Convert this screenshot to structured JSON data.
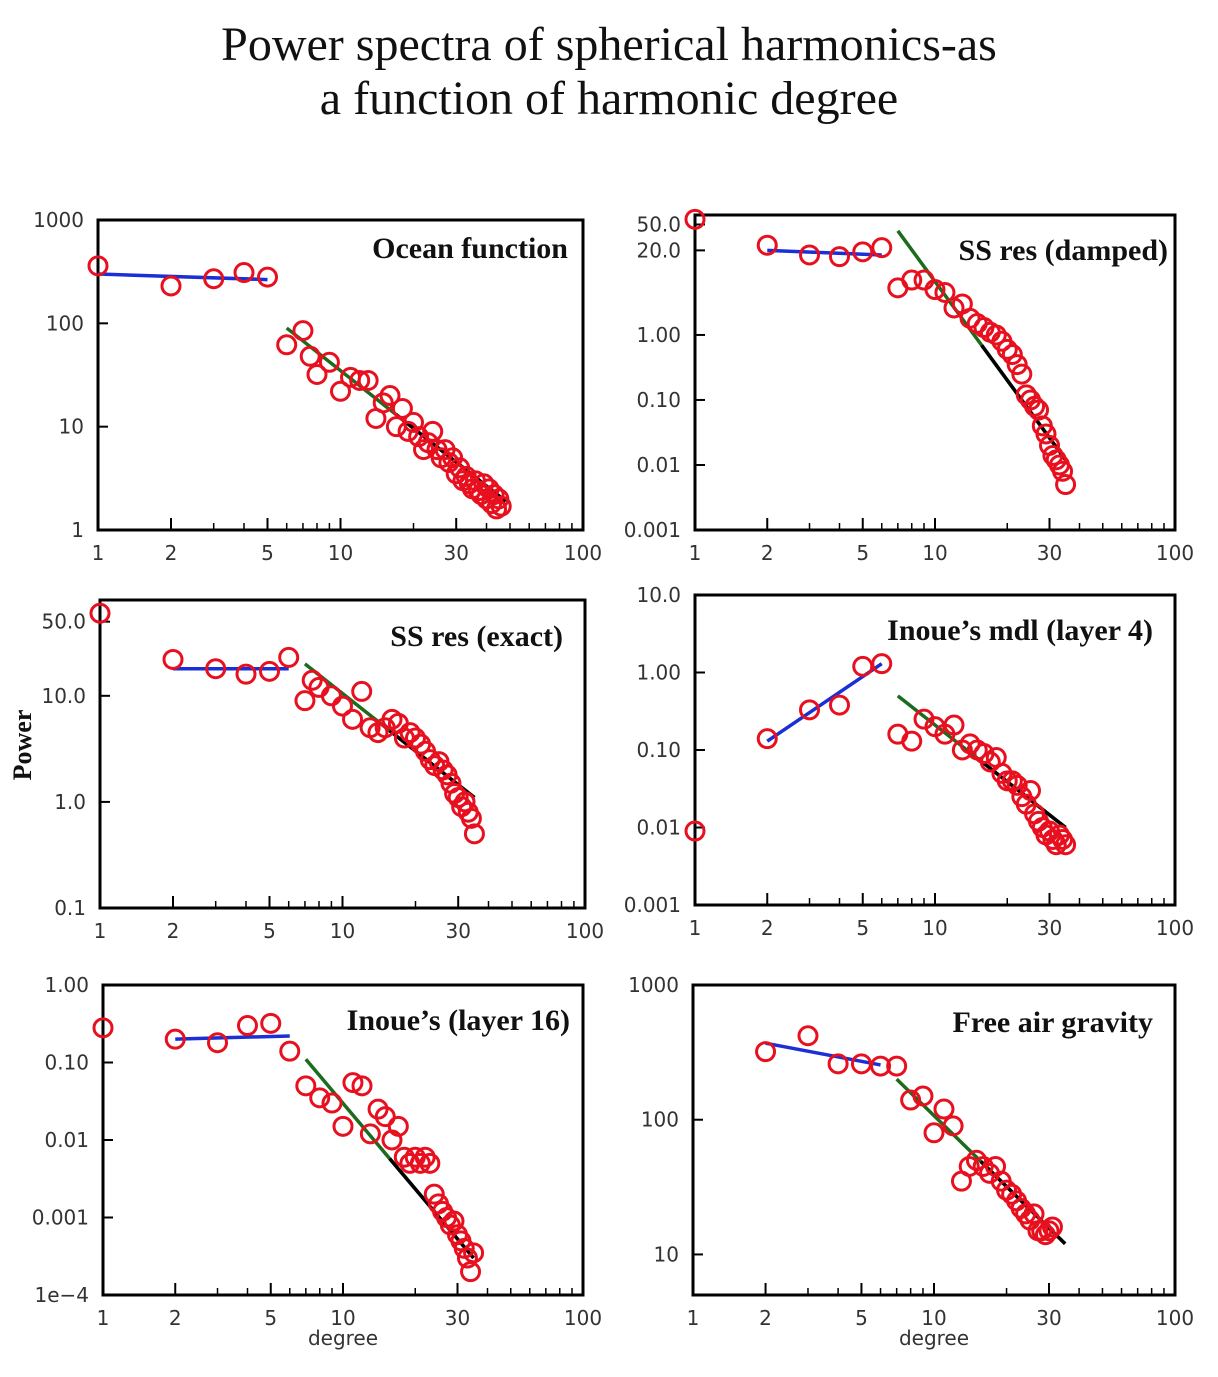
{
  "title_line1": "Power spectra of spherical harmonics-as",
  "title_line2": "a function of harmonic degree",
  "ylabel": "Power",
  "xlabel": "degree",
  "x_ticks": [
    1,
    2,
    5,
    10,
    30,
    100
  ],
  "x_tick_labels": [
    "1",
    "2",
    "5",
    "10",
    "30",
    "100"
  ],
  "colors": {
    "points": "#e8101e",
    "fit_low": "#1b2fd6",
    "fit_high_a": "#1c6b1f",
    "fit_high_b": "#000000",
    "frame": "#000000"
  },
  "chart_data": [
    {
      "type": "scatter",
      "title": "Ocean function",
      "xlabel": "",
      "scale": "log-log",
      "xlim": [
        1,
        100
      ],
      "ylim": [
        1,
        1000
      ],
      "y_ticks": [
        1,
        10,
        100,
        1000
      ],
      "y_tick_labels": [
        "1",
        "10",
        "100",
        "1000"
      ],
      "points": [
        [
          1,
          360
        ],
        [
          2,
          230
        ],
        [
          3,
          270
        ],
        [
          4,
          310
        ],
        [
          5,
          280
        ],
        [
          6,
          62
        ],
        [
          7,
          85
        ],
        [
          7.5,
          48
        ],
        [
          8,
          32
        ],
        [
          9,
          42
        ],
        [
          10,
          22
        ],
        [
          11,
          30
        ],
        [
          12,
          28
        ],
        [
          13,
          28
        ],
        [
          14,
          12
        ],
        [
          15,
          17
        ],
        [
          16,
          20
        ],
        [
          17,
          10
        ],
        [
          18,
          15
        ],
        [
          19,
          9
        ],
        [
          20,
          11
        ],
        [
          21,
          8
        ],
        [
          22,
          6
        ],
        [
          23,
          7
        ],
        [
          24,
          9
        ],
        [
          25,
          6
        ],
        [
          26,
          5
        ],
        [
          27,
          6
        ],
        [
          28,
          4.5
        ],
        [
          29,
          5
        ],
        [
          30,
          3.5
        ],
        [
          31,
          4
        ],
        [
          32,
          3
        ],
        [
          33,
          3.3
        ],
        [
          34,
          2.8
        ],
        [
          35,
          2.5
        ],
        [
          36,
          3
        ],
        [
          37,
          2.4
        ],
        [
          38,
          2.2
        ],
        [
          39,
          2.8
        ],
        [
          40,
          2
        ],
        [
          41,
          2.5
        ],
        [
          42,
          1.8
        ],
        [
          43,
          2.2
        ],
        [
          44,
          1.6
        ],
        [
          45,
          2
        ],
        [
          46,
          1.7
        ]
      ],
      "fits": [
        {
          "x": [
            1,
            5
          ],
          "y": [
            300,
            265
          ],
          "role": "low"
        },
        {
          "x": [
            6,
            48
          ],
          "y": [
            90,
            1.9
          ],
          "role": "high"
        }
      ]
    },
    {
      "type": "scatter",
      "title": "SS res (damped)",
      "xlabel": "",
      "scale": "log-log",
      "xlim": [
        1,
        100
      ],
      "ylim": [
        0.001,
        70
      ],
      "y_ticks": [
        0.001,
        0.01,
        0.1,
        1,
        20,
        50
      ],
      "y_tick_labels": [
        "0.001",
        "0.01",
        "0.10",
        "1.00",
        "20.0",
        "50.0"
      ],
      "points": [
        [
          1,
          60
        ],
        [
          2,
          24
        ],
        [
          3,
          17
        ],
        [
          4,
          16
        ],
        [
          5,
          19
        ],
        [
          6,
          22
        ],
        [
          7,
          5.3
        ],
        [
          8,
          7
        ],
        [
          9,
          7
        ],
        [
          10,
          5
        ],
        [
          11,
          4.5
        ],
        [
          12,
          2.6
        ],
        [
          13,
          3
        ],
        [
          14,
          1.8
        ],
        [
          15,
          1.5
        ],
        [
          16,
          1.3
        ],
        [
          17,
          1.1
        ],
        [
          18,
          1
        ],
        [
          19,
          0.8
        ],
        [
          20,
          0.6
        ],
        [
          21,
          0.5
        ],
        [
          22,
          0.35
        ],
        [
          23,
          0.25
        ],
        [
          24,
          0.12
        ],
        [
          25,
          0.1
        ],
        [
          26,
          0.08
        ],
        [
          27,
          0.07
        ],
        [
          28,
          0.04
        ],
        [
          29,
          0.03
        ],
        [
          30,
          0.02
        ],
        [
          31,
          0.014
        ],
        [
          32,
          0.012
        ],
        [
          33,
          0.01
        ],
        [
          34,
          0.008
        ],
        [
          35,
          0.005
        ]
      ],
      "fits": [
        {
          "x": [
            2,
            6
          ],
          "y": [
            20,
            17
          ],
          "role": "low"
        },
        {
          "x": [
            7,
            35
          ],
          "y": [
            40,
            0.012
          ],
          "role": "high"
        }
      ]
    },
    {
      "type": "scatter",
      "title": "SS res (exact)",
      "xlabel": "",
      "scale": "log-log",
      "xlim": [
        1,
        100
      ],
      "ylim": [
        0.1,
        80
      ],
      "y_ticks": [
        0.1,
        1,
        10,
        50
      ],
      "y_tick_labels": [
        "0.1",
        "1.0",
        "10.0",
        "50.0"
      ],
      "points": [
        [
          1,
          60
        ],
        [
          2,
          22
        ],
        [
          3,
          18
        ],
        [
          4,
          16
        ],
        [
          5,
          17
        ],
        [
          6,
          23
        ],
        [
          7,
          9
        ],
        [
          7.5,
          14
        ],
        [
          8,
          12
        ],
        [
          9,
          10
        ],
        [
          10,
          8
        ],
        [
          11,
          6
        ],
        [
          12,
          11
        ],
        [
          13,
          5
        ],
        [
          14,
          4.5
        ],
        [
          15,
          5
        ],
        [
          16,
          6
        ],
        [
          17,
          5.5
        ],
        [
          18,
          4
        ],
        [
          19,
          4.5
        ],
        [
          20,
          4
        ],
        [
          21,
          3.5
        ],
        [
          22,
          3
        ],
        [
          23,
          2.5
        ],
        [
          24,
          2.2
        ],
        [
          25,
          2.4
        ],
        [
          26,
          2
        ],
        [
          27,
          1.8
        ],
        [
          28,
          1.5
        ],
        [
          29,
          1.2
        ],
        [
          30,
          1.1
        ],
        [
          31,
          0.9
        ],
        [
          32,
          1
        ],
        [
          33,
          0.8
        ],
        [
          34,
          0.7
        ],
        [
          35,
          0.5
        ]
      ],
      "fits": [
        {
          "x": [
            2,
            6
          ],
          "y": [
            18,
            18
          ],
          "role": "low"
        },
        {
          "x": [
            7,
            35
          ],
          "y": [
            20,
            1.1
          ],
          "role": "high"
        }
      ]
    },
    {
      "type": "scatter",
      "title": "Inoue’s mdl (layer 4)",
      "xlabel": "",
      "scale": "log-log",
      "xlim": [
        1,
        100
      ],
      "ylim": [
        0.001,
        10
      ],
      "y_ticks": [
        0.001,
        0.01,
        0.1,
        1,
        10
      ],
      "y_tick_labels": [
        "0.001",
        "0.01",
        "0.10",
        "1.00",
        "10.0"
      ],
      "points": [
        [
          1,
          0.009
        ],
        [
          2,
          0.14
        ],
        [
          3,
          0.33
        ],
        [
          4,
          0.38
        ],
        [
          5,
          1.2
        ],
        [
          6,
          1.3
        ],
        [
          7,
          0.16
        ],
        [
          8,
          0.13
        ],
        [
          9,
          0.25
        ],
        [
          10,
          0.2
        ],
        [
          11,
          0.16
        ],
        [
          12,
          0.21
        ],
        [
          13,
          0.1
        ],
        [
          14,
          0.12
        ],
        [
          15,
          0.1
        ],
        [
          16,
          0.09
        ],
        [
          17,
          0.07
        ],
        [
          18,
          0.08
        ],
        [
          19,
          0.05
        ],
        [
          20,
          0.04
        ],
        [
          21,
          0.04
        ],
        [
          22,
          0.035
        ],
        [
          23,
          0.025
        ],
        [
          24,
          0.02
        ],
        [
          25,
          0.03
        ],
        [
          26,
          0.015
        ],
        [
          27,
          0.012
        ],
        [
          28,
          0.01
        ],
        [
          29,
          0.008
        ],
        [
          30,
          0.009
        ],
        [
          31,
          0.007
        ],
        [
          32,
          0.006
        ],
        [
          33,
          0.008
        ],
        [
          34,
          0.007
        ],
        [
          35,
          0.006
        ]
      ],
      "fits": [
        {
          "x": [
            2,
            6
          ],
          "y": [
            0.13,
            1.3
          ],
          "role": "low"
        },
        {
          "x": [
            7,
            35
          ],
          "y": [
            0.5,
            0.01
          ],
          "role": "high"
        }
      ]
    },
    {
      "type": "scatter",
      "title": "Inoue’s (layer 16)",
      "xlabel": "degree",
      "scale": "log-log",
      "xlim": [
        1,
        100
      ],
      "ylim": [
        0.0001,
        1
      ],
      "y_ticks": [
        0.0001,
        0.001,
        0.01,
        0.1,
        1
      ],
      "y_tick_labels": [
        "1e−4",
        "0.001",
        "0.01",
        "0.10",
        "1.00"
      ],
      "points": [
        [
          1,
          0.28
        ],
        [
          2,
          0.2
        ],
        [
          3,
          0.18
        ],
        [
          4,
          0.3
        ],
        [
          5,
          0.32
        ],
        [
          6,
          0.14
        ],
        [
          7,
          0.05
        ],
        [
          8,
          0.035
        ],
        [
          9,
          0.03
        ],
        [
          10,
          0.015
        ],
        [
          11,
          0.055
        ],
        [
          12,
          0.05
        ],
        [
          13,
          0.012
        ],
        [
          14,
          0.025
        ],
        [
          15,
          0.02
        ],
        [
          16,
          0.01
        ],
        [
          17,
          0.015
        ],
        [
          18,
          0.006
        ],
        [
          19,
          0.005
        ],
        [
          20,
          0.006
        ],
        [
          21,
          0.005
        ],
        [
          22,
          0.006
        ],
        [
          23,
          0.005
        ],
        [
          24,
          0.002
        ],
        [
          25,
          0.0015
        ],
        [
          26,
          0.0012
        ],
        [
          27,
          0.001
        ],
        [
          28,
          0.0008
        ],
        [
          29,
          0.0009
        ],
        [
          30,
          0.0006
        ],
        [
          31,
          0.0005
        ],
        [
          32,
          0.0004
        ],
        [
          33,
          0.0003
        ],
        [
          34,
          0.0002
        ],
        [
          35,
          0.00035
        ]
      ],
      "fits": [
        {
          "x": [
            2,
            6
          ],
          "y": [
            0.2,
            0.22
          ],
          "role": "low"
        },
        {
          "x": [
            7,
            35
          ],
          "y": [
            0.11,
            0.0003
          ],
          "role": "high"
        }
      ]
    },
    {
      "type": "scatter",
      "title": "Free air gravity",
      "xlabel": "degree",
      "scale": "log-log",
      "xlim": [
        1,
        100
      ],
      "ylim": [
        5,
        1000
      ],
      "y_ticks": [
        10,
        100,
        1000
      ],
      "y_tick_labels": [
        "10",
        "100",
        "1000"
      ],
      "points": [
        [
          2,
          320
        ],
        [
          3,
          420
        ],
        [
          4,
          260
        ],
        [
          5,
          260
        ],
        [
          6,
          250
        ],
        [
          7,
          250
        ],
        [
          8,
          140
        ],
        [
          9,
          150
        ],
        [
          10,
          80
        ],
        [
          11,
          120
        ],
        [
          12,
          90
        ],
        [
          13,
          35
        ],
        [
          14,
          45
        ],
        [
          15,
          50
        ],
        [
          16,
          45
        ],
        [
          17,
          40
        ],
        [
          18,
          45
        ],
        [
          19,
          35
        ],
        [
          20,
          30
        ],
        [
          21,
          28
        ],
        [
          22,
          25
        ],
        [
          23,
          22
        ],
        [
          24,
          20
        ],
        [
          25,
          18
        ],
        [
          26,
          20
        ],
        [
          27,
          15
        ],
        [
          28,
          15
        ],
        [
          29,
          14
        ],
        [
          30,
          15
        ],
        [
          31,
          16
        ]
      ],
      "fits": [
        {
          "x": [
            2,
            6
          ],
          "y": [
            370,
            255
          ],
          "role": "low"
        },
        {
          "x": [
            7,
            35
          ],
          "y": [
            200,
            12
          ],
          "role": "high"
        }
      ]
    }
  ]
}
